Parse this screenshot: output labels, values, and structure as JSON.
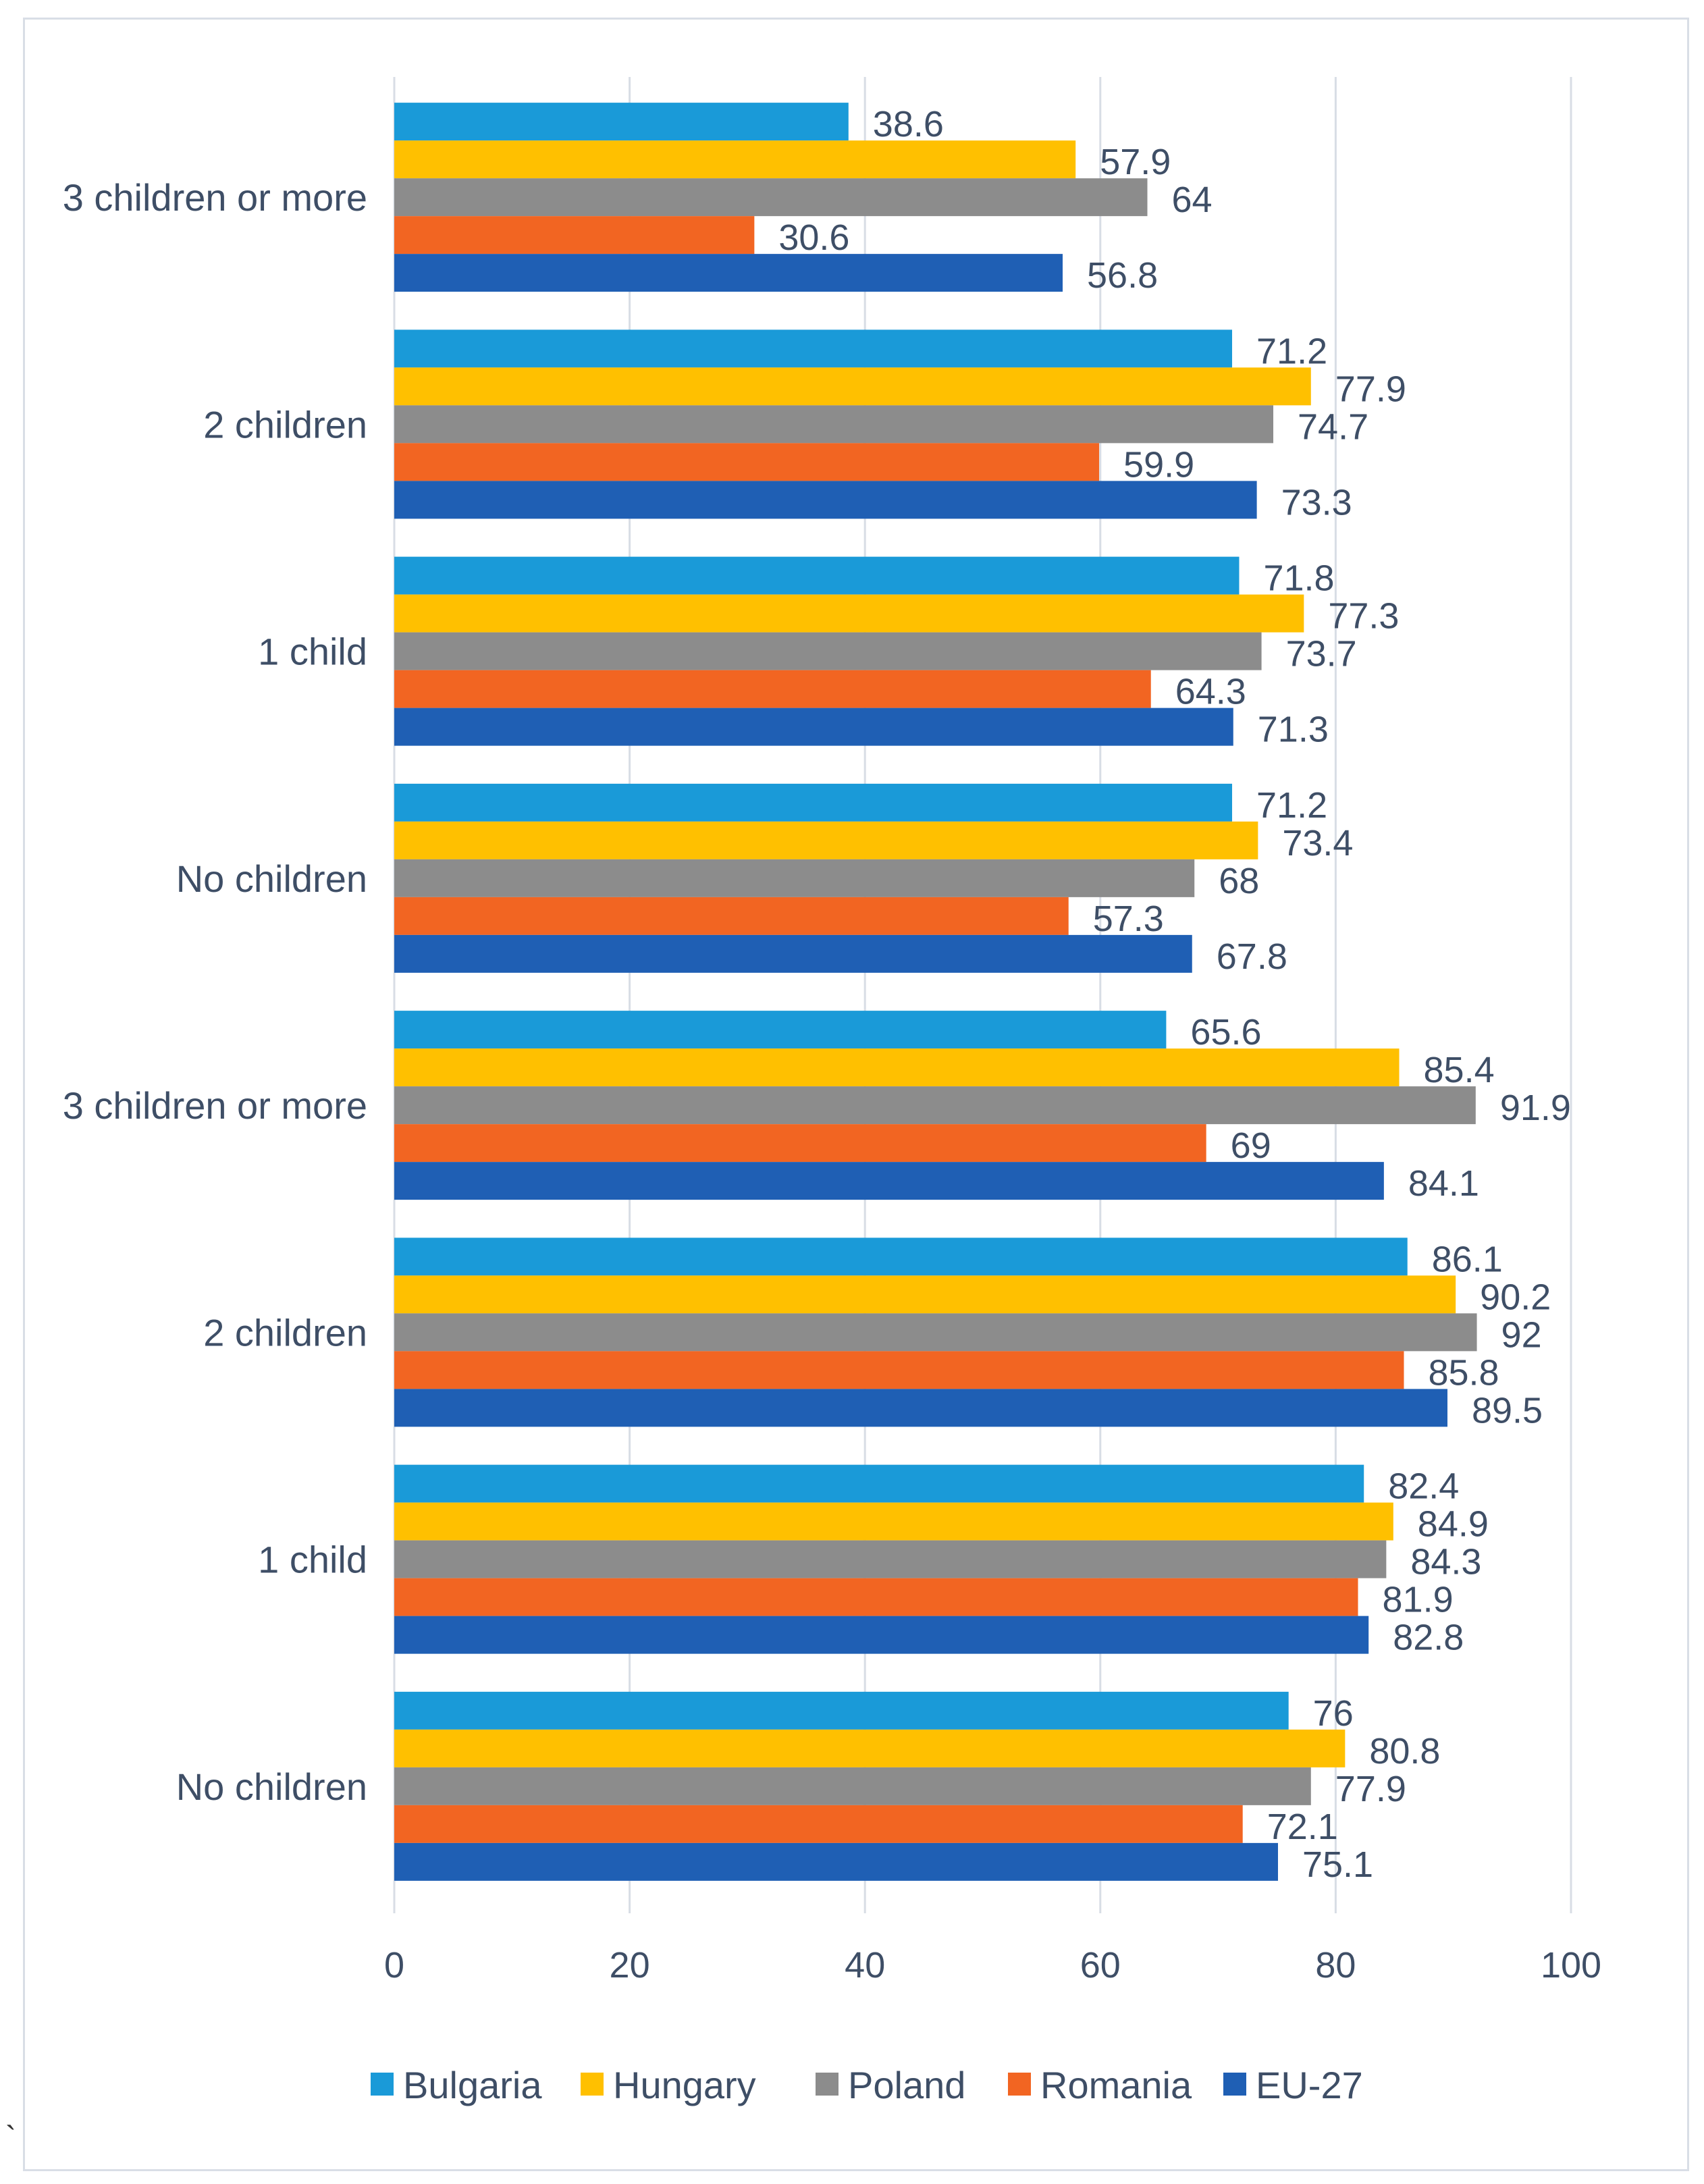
{
  "chart_data": {
    "type": "bar",
    "orientation": "horizontal",
    "categories": [
      "3 children or more",
      "2 children",
      "1 child",
      "No children",
      "3 children or more",
      "2 children",
      "1 child",
      "No children"
    ],
    "series": [
      {
        "name": "Bulgaria",
        "color": "#1a9ad8",
        "values": [
          38.6,
          71.2,
          71.8,
          71.2,
          65.6,
          86.1,
          82.4,
          76
        ]
      },
      {
        "name": "Hungary",
        "color": "#ffc000",
        "values": [
          57.9,
          77.9,
          77.3,
          73.4,
          85.4,
          90.2,
          84.9,
          80.8
        ]
      },
      {
        "name": "Poland",
        "color": "#8c8c8c",
        "values": [
          64,
          74.7,
          73.7,
          68,
          91.9,
          92,
          84.3,
          77.9
        ]
      },
      {
        "name": "Romania",
        "color": "#f26522",
        "values": [
          30.6,
          59.9,
          64.3,
          57.3,
          69,
          85.8,
          81.9,
          72.1
        ]
      },
      {
        "name": "EU-27",
        "color": "#1f5fb4",
        "values": [
          56.8,
          73.3,
          71.3,
          67.8,
          84.1,
          89.5,
          82.8,
          75.1
        ]
      }
    ],
    "xlim": [
      0,
      100
    ],
    "xticks": [
      0,
      20,
      40,
      60,
      80,
      100
    ],
    "grid": true,
    "legend_position": "bottom",
    "title": "",
    "xlabel": "",
    "ylabel": ""
  },
  "stray_mark": "`"
}
